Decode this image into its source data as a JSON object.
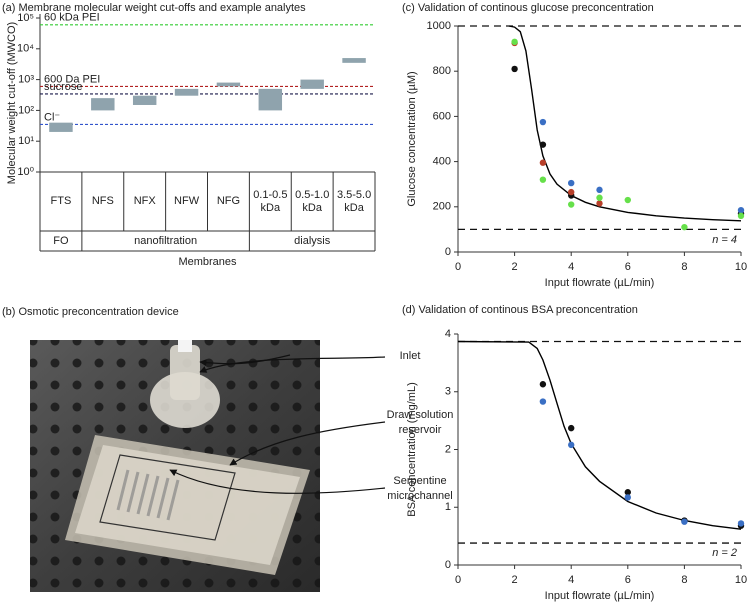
{
  "chart_data": [
    {
      "type": "rangebar",
      "title": "(a) Membrane molecular weight cut-offs and example analytes",
      "ylabel": "Molecular weight cut-off (MWCO)",
      "xlabel": "Membranes",
      "log_y": true,
      "ylim": [
        1,
        100000
      ],
      "yticks": [
        {
          "value": 1,
          "label": "10⁰"
        },
        {
          "value": 10,
          "label": "10¹"
        },
        {
          "value": 100,
          "label": "10²"
        },
        {
          "value": 1000,
          "label": "10³"
        },
        {
          "value": 10000,
          "label": "10⁴"
        },
        {
          "value": 100000,
          "label": "10⁵"
        }
      ],
      "categories": [
        "FTS",
        "NFS",
        "NFX",
        "NFW",
        "NFG",
        "0.1-0.5 kDa",
        "0.5-1.0 kDa",
        "3.5-5.0 kDa"
      ],
      "low": [
        20,
        100,
        150,
        300,
        600,
        100,
        500,
        3500
      ],
      "high": [
        40,
        250,
        300,
        500,
        800,
        500,
        1000,
        5000
      ],
      "color": "#8fa3ad",
      "groups": [
        {
          "label": "FO",
          "span": 1
        },
        {
          "label": "nanofiltration",
          "span": 4
        },
        {
          "label": "dialysis",
          "span": 3
        }
      ],
      "reference_lines": [
        {
          "label": "60 kDa PEI",
          "value": 60000,
          "color": "#33cc33"
        },
        {
          "label": "600 Da PEI",
          "value": 600,
          "color": "#b22222"
        },
        {
          "label": "sucrose",
          "value": 342,
          "color": "#1a1a4a"
        },
        {
          "label": "Cl⁻",
          "value": 35,
          "color": "#3355cc"
        }
      ]
    },
    {
      "type": "scatter",
      "title": "(c) Validation of continous glucose preconcentration",
      "ylabel": "Glucose concentration (µM)",
      "xlabel": "Input flowrate (µL/min)",
      "xlim": [
        0,
        10
      ],
      "xticks": [
        0,
        2,
        4,
        6,
        8,
        10
      ],
      "ylim": [
        0,
        1000
      ],
      "yticks": [
        0,
        200,
        400,
        600,
        800,
        1000
      ],
      "series": [
        {
          "color": "#111111",
          "x": [
            2,
            3,
            4,
            10
          ],
          "values": [
            810,
            475,
            250,
            170
          ]
        },
        {
          "color": "#3a6fc4",
          "x": [
            3,
            4,
            5,
            10
          ],
          "values": [
            575,
            305,
            275,
            185
          ]
        },
        {
          "color": "#b8402a",
          "x": [
            2,
            3,
            4,
            5
          ],
          "values": [
            925,
            395,
            265,
            215
          ]
        },
        {
          "color": "#66e04a",
          "x": [
            2,
            3,
            4,
            5,
            6,
            8,
            10
          ],
          "values": [
            930,
            320,
            210,
            240,
            230,
            110,
            160
          ]
        }
      ],
      "fit": {
        "color": "#000000",
        "x": [
          1.8,
          2,
          2.2,
          2.4,
          2.6,
          2.8,
          3,
          3.25,
          3.5,
          4,
          4.5,
          5,
          6,
          7,
          8,
          9,
          10
        ],
        "values": [
          1000,
          995,
          975,
          890,
          720,
          540,
          425,
          345,
          300,
          250,
          220,
          200,
          175,
          160,
          150,
          143,
          138
        ]
      },
      "reference_lines": [
        {
          "value": 1000
        },
        {
          "value": 100
        }
      ],
      "annotation": "n = 4"
    },
    {
      "type": "scatter",
      "title": "(d) Validation of continous BSA preconcentration",
      "ylabel": "BSA concentration (mg/mL)",
      "xlabel": "Input flowrate (µL/min)",
      "xlim": [
        0,
        10
      ],
      "xticks": [
        0,
        2,
        4,
        6,
        8,
        10
      ],
      "ylim": [
        0,
        4
      ],
      "yticks": [
        0,
        1,
        2,
        3,
        4
      ],
      "series": [
        {
          "color": "#111111",
          "x": [
            3,
            4,
            6,
            8,
            10
          ],
          "values": [
            3.13,
            2.37,
            1.26,
            0.77,
            0.68
          ]
        },
        {
          "color": "#3a6fc4",
          "x": [
            3,
            4,
            6,
            8,
            10
          ],
          "values": [
            2.83,
            2.08,
            1.17,
            0.75,
            0.72
          ]
        }
      ],
      "fit": {
        "color": "#000000",
        "x": [
          0,
          2.5,
          2.8,
          3,
          3.25,
          3.5,
          3.75,
          4,
          4.5,
          5,
          6,
          7,
          8,
          9,
          10
        ],
        "values": [
          3.87,
          3.86,
          3.75,
          3.55,
          3.2,
          2.8,
          2.4,
          2.1,
          1.7,
          1.45,
          1.1,
          0.9,
          0.77,
          0.68,
          0.62
        ]
      },
      "reference_lines": [
        {
          "value": 3.87
        },
        {
          "value": 0.38
        }
      ],
      "annotation": "n = 2"
    }
  ],
  "photo_panel": {
    "title": "(b) Osmotic preconcentration device",
    "labels": [
      "Inlet",
      "Draw solution reservoir",
      "Serpentine microchannel"
    ]
  }
}
